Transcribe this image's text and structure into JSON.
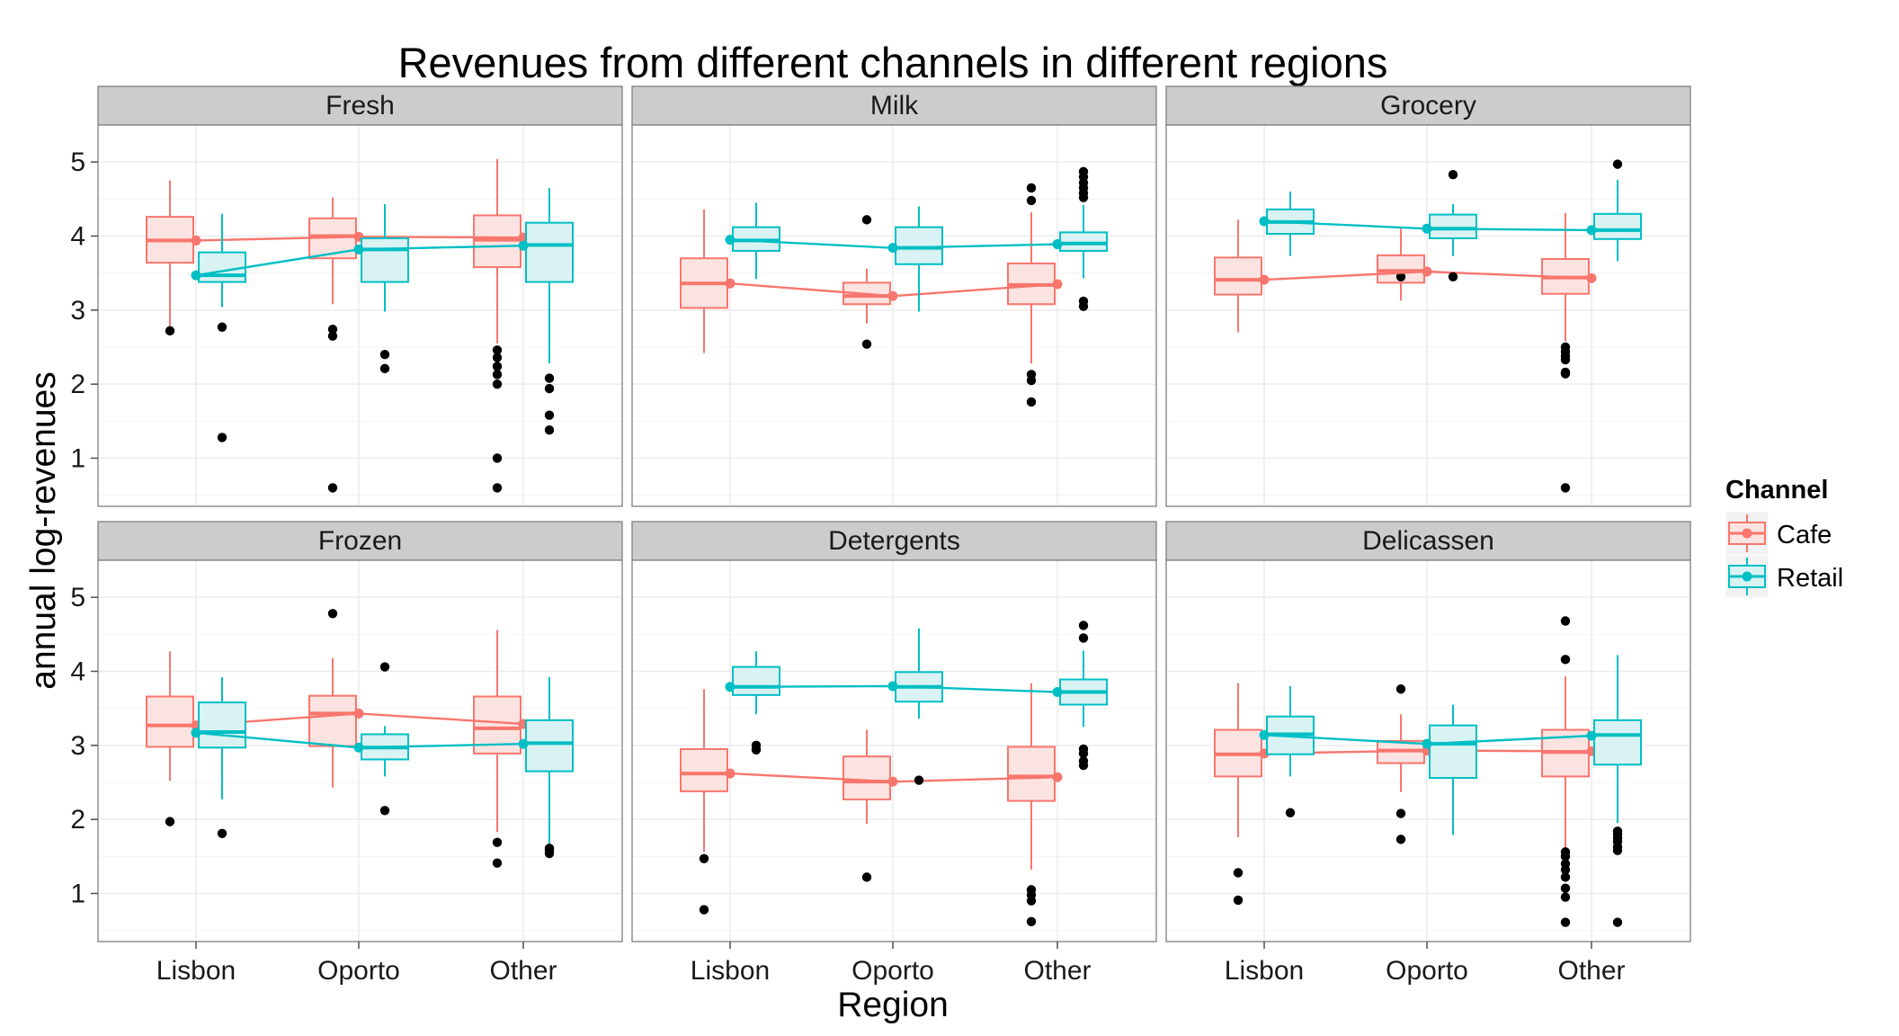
{
  "chart_data": {
    "type": "boxplot",
    "title": "Revenues from different channels in different regions",
    "xlabel": "Region",
    "ylabel": "annual log-revenues",
    "categories": [
      "Lisbon",
      "Oporto",
      "Other"
    ],
    "ylim": [
      0.35,
      5.5
    ],
    "yticks": [
      1,
      2,
      3,
      4,
      5
    ],
    "grid": true,
    "legend": {
      "title": "Channel",
      "position": "right",
      "entries": [
        "Cafe",
        "Retail"
      ]
    },
    "colors": {
      "Cafe": "#F8766D",
      "Retail": "#00BFC4",
      "Cafe_fill": "#FBE3E1",
      "Retail_fill": "#D9F2F3",
      "panel_border": "#7f7f7f",
      "strip_bg": "#CCCCCC",
      "grid_major": "#EBEBEB",
      "outlier": "#000000"
    },
    "panels": [
      {
        "name": "Fresh",
        "series": [
          {
            "name": "Cafe",
            "boxes": [
              {
                "q1": 3.64,
                "median": 3.94,
                "q3": 4.26,
                "whisker_low": 2.76,
                "whisker_high": 4.75,
                "mean": 3.94,
                "outliers": [
                  2.72
                ]
              },
              {
                "q1": 3.7,
                "median": 4.0,
                "q3": 4.24,
                "whisker_low": 3.08,
                "whisker_high": 4.52,
                "mean": 3.99,
                "outliers": [
                  2.74,
                  2.65,
                  0.6
                ]
              },
              {
                "q1": 3.58,
                "median": 3.95,
                "q3": 4.28,
                "whisker_low": 2.55,
                "whisker_high": 5.04,
                "mean": 3.98,
                "outliers": [
                  2.46,
                  2.36,
                  2.24,
                  2.13,
                  2.0,
                  1.0,
                  0.6
                ]
              }
            ]
          },
          {
            "name": "Retail",
            "boxes": [
              {
                "q1": 3.38,
                "median": 3.47,
                "q3": 3.78,
                "whisker_low": 3.04,
                "whisker_high": 4.3,
                "mean": 3.47,
                "outliers": [
                  2.77,
                  1.28
                ]
              },
              {
                "q1": 3.38,
                "median": 3.82,
                "q3": 3.97,
                "whisker_low": 2.98,
                "whisker_high": 4.43,
                "mean": 3.82,
                "outliers": [
                  2.4,
                  2.21
                ]
              },
              {
                "q1": 3.38,
                "median": 3.88,
                "q3": 4.18,
                "whisker_low": 2.28,
                "whisker_high": 4.65,
                "mean": 3.87,
                "outliers": [
                  2.08,
                  1.94,
                  1.58,
                  1.38
                ]
              }
            ]
          }
        ]
      },
      {
        "name": "Milk",
        "series": [
          {
            "name": "Cafe",
            "boxes": [
              {
                "q1": 3.03,
                "median": 3.36,
                "q3": 3.7,
                "whisker_low": 2.42,
                "whisker_high": 4.36,
                "mean": 3.36,
                "outliers": []
              },
              {
                "q1": 3.08,
                "median": 3.19,
                "q3": 3.37,
                "whisker_low": 2.82,
                "whisker_high": 3.56,
                "mean": 3.19,
                "outliers": [
                  4.22,
                  2.54
                ]
              },
              {
                "q1": 3.08,
                "median": 3.34,
                "q3": 3.63,
                "whisker_low": 2.28,
                "whisker_high": 4.32,
                "mean": 3.35,
                "outliers": [
                  4.65,
                  4.48,
                  2.13,
                  2.05,
                  1.76
                ]
              }
            ]
          },
          {
            "name": "Retail",
            "boxes": [
              {
                "q1": 3.8,
                "median": 3.94,
                "q3": 4.12,
                "whisker_low": 3.42,
                "whisker_high": 4.45,
                "mean": 3.95,
                "outliers": []
              },
              {
                "q1": 3.62,
                "median": 3.84,
                "q3": 4.12,
                "whisker_low": 2.98,
                "whisker_high": 4.4,
                "mean": 3.84,
                "outliers": []
              },
              {
                "q1": 3.8,
                "median": 3.9,
                "q3": 4.05,
                "whisker_low": 3.43,
                "whisker_high": 4.42,
                "mean": 3.89,
                "outliers": [
                  4.87,
                  4.8,
                  4.72,
                  4.65,
                  4.58,
                  4.52,
                  3.12,
                  3.05
                ]
              }
            ]
          }
        ]
      },
      {
        "name": "Grocery",
        "series": [
          {
            "name": "Cafe",
            "boxes": [
              {
                "q1": 3.21,
                "median": 3.41,
                "q3": 3.71,
                "whisker_low": 2.7,
                "whisker_high": 4.22,
                "mean": 3.41,
                "outliers": []
              },
              {
                "q1": 3.37,
                "median": 3.53,
                "q3": 3.74,
                "whisker_low": 3.13,
                "whisker_high": 4.1,
                "mean": 3.52,
                "outliers": [
                  3.45
                ]
              },
              {
                "q1": 3.22,
                "median": 3.44,
                "q3": 3.69,
                "whisker_low": 2.58,
                "whisker_high": 4.31,
                "mean": 3.43,
                "outliers": [
                  2.5,
                  2.44,
                  2.38,
                  2.33,
                  2.16,
                  2.14,
                  0.6
                ]
              }
            ]
          },
          {
            "name": "Retail",
            "boxes": [
              {
                "q1": 4.03,
                "median": 4.19,
                "q3": 4.36,
                "whisker_low": 3.73,
                "whisker_high": 4.6,
                "mean": 4.2,
                "outliers": []
              },
              {
                "q1": 3.97,
                "median": 4.1,
                "q3": 4.29,
                "whisker_low": 3.73,
                "whisker_high": 4.43,
                "mean": 4.1,
                "outliers": [
                  4.83,
                  3.45
                ]
              },
              {
                "q1": 3.96,
                "median": 4.08,
                "q3": 4.3,
                "whisker_low": 3.66,
                "whisker_high": 4.76,
                "mean": 4.08,
                "outliers": [
                  4.97
                ]
              }
            ]
          }
        ]
      },
      {
        "name": "Frozen",
        "series": [
          {
            "name": "Cafe",
            "boxes": [
              {
                "q1": 2.98,
                "median": 3.27,
                "q3": 3.66,
                "whisker_low": 2.52,
                "whisker_high": 4.27,
                "mean": 3.27,
                "outliers": [
                  1.97
                ]
              },
              {
                "q1": 2.99,
                "median": 3.43,
                "q3": 3.67,
                "whisker_low": 2.43,
                "whisker_high": 4.18,
                "mean": 3.43,
                "outliers": [
                  4.78
                ]
              },
              {
                "q1": 2.89,
                "median": 3.23,
                "q3": 3.66,
                "whisker_low": 1.83,
                "whisker_high": 4.56,
                "mean": 3.29,
                "outliers": [
                  1.69,
                  1.41
                ]
              }
            ]
          },
          {
            "name": "Retail",
            "boxes": [
              {
                "q1": 2.97,
                "median": 3.18,
                "q3": 3.58,
                "whisker_low": 2.27,
                "whisker_high": 3.92,
                "mean": 3.17,
                "outliers": [
                  1.81
                ]
              },
              {
                "q1": 2.81,
                "median": 2.97,
                "q3": 3.15,
                "whisker_low": 2.58,
                "whisker_high": 3.26,
                "mean": 2.97,
                "outliers": [
                  4.06,
                  2.12
                ]
              },
              {
                "q1": 2.65,
                "median": 3.03,
                "q3": 3.34,
                "whisker_low": 1.64,
                "whisker_high": 3.92,
                "mean": 3.02,
                "outliers": [
                  1.61,
                  1.58,
                  1.54
                ]
              }
            ]
          }
        ]
      },
      {
        "name": "Detergents",
        "series": [
          {
            "name": "Cafe",
            "boxes": [
              {
                "q1": 2.38,
                "median": 2.62,
                "q3": 2.95,
                "whisker_low": 1.56,
                "whisker_high": 3.76,
                "mean": 2.62,
                "outliers": [
                  1.47,
                  0.78
                ]
              },
              {
                "q1": 2.27,
                "median": 2.51,
                "q3": 2.85,
                "whisker_low": 1.94,
                "whisker_high": 3.21,
                "mean": 2.51,
                "outliers": [
                  1.22
                ]
              },
              {
                "q1": 2.25,
                "median": 2.58,
                "q3": 2.98,
                "whisker_low": 1.32,
                "whisker_high": 3.84,
                "mean": 2.57,
                "outliers": [
                  1.05,
                  0.98,
                  0.9,
                  0.62
                ]
              }
            ]
          },
          {
            "name": "Retail",
            "boxes": [
              {
                "q1": 3.68,
                "median": 3.79,
                "q3": 4.06,
                "whisker_low": 3.42,
                "whisker_high": 4.27,
                "mean": 3.79,
                "outliers": [
                  3.0,
                  2.94
                ]
              },
              {
                "q1": 3.59,
                "median": 3.79,
                "q3": 3.99,
                "whisker_low": 3.36,
                "whisker_high": 4.58,
                "mean": 3.8,
                "outliers": [
                  2.53
                ]
              },
              {
                "q1": 3.55,
                "median": 3.72,
                "q3": 3.89,
                "whisker_low": 3.25,
                "whisker_high": 4.28,
                "mean": 3.72,
                "outliers": [
                  4.62,
                  4.45,
                  2.95,
                  2.89,
                  2.79,
                  2.73
                ]
              }
            ]
          }
        ]
      },
      {
        "name": "Delicassen",
        "series": [
          {
            "name": "Cafe",
            "boxes": [
              {
                "q1": 2.58,
                "median": 2.88,
                "q3": 3.21,
                "whisker_low": 1.76,
                "whisker_high": 3.84,
                "mean": 2.89,
                "outliers": [
                  1.28,
                  0.91
                ]
              },
              {
                "q1": 2.76,
                "median": 2.93,
                "q3": 3.06,
                "whisker_low": 2.37,
                "whisker_high": 3.42,
                "mean": 2.93,
                "outliers": [
                  3.76,
                  2.08,
                  1.73
                ]
              },
              {
                "q1": 2.58,
                "median": 2.91,
                "q3": 3.21,
                "whisker_low": 1.61,
                "whisker_high": 3.93,
                "mean": 2.92,
                "outliers": [
                  4.68,
                  4.16,
                  1.56,
                  1.5,
                  1.4,
                  1.32,
                  1.22,
                  1.07,
                  0.95,
                  0.61
                ]
              }
            ]
          },
          {
            "name": "Retail",
            "boxes": [
              {
                "q1": 2.88,
                "median": 3.15,
                "q3": 3.39,
                "whisker_low": 2.58,
                "whisker_high": 3.8,
                "mean": 3.14,
                "outliers": [
                  2.09
                ]
              },
              {
                "q1": 2.56,
                "median": 3.02,
                "q3": 3.27,
                "whisker_low": 1.79,
                "whisker_high": 3.55,
                "mean": 3.02,
                "outliers": []
              },
              {
                "q1": 2.74,
                "median": 3.14,
                "q3": 3.34,
                "whisker_low": 1.95,
                "whisker_high": 4.22,
                "mean": 3.13,
                "outliers": [
                  1.84,
                  1.8,
                  1.75,
                  1.7,
                  1.63,
                  1.58,
                  0.61
                ]
              }
            ]
          }
        ]
      }
    ]
  }
}
